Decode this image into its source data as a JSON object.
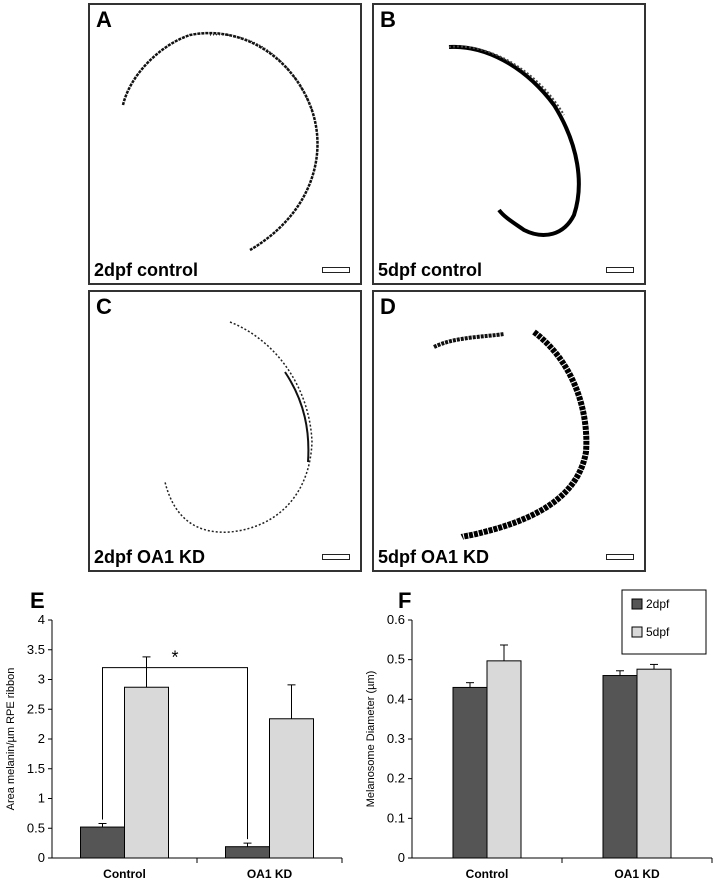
{
  "panels": [
    {
      "letter": "A",
      "caption": "2dpf control"
    },
    {
      "letter": "B",
      "caption": "5dpf control"
    },
    {
      "letter": "C",
      "caption": "2dpf OA1 KD"
    },
    {
      "letter": "D",
      "caption": "5dpf OA1 KD"
    }
  ],
  "chart_data": [
    {
      "panel_letter": "E",
      "type": "bar",
      "categories": [
        "Control",
        "OA1 KD"
      ],
      "series": [
        {
          "name": "2dpf",
          "values": [
            0.52,
            0.19
          ],
          "errors": [
            0.06,
            0.06
          ],
          "color": "#555555"
        },
        {
          "name": "5dpf",
          "values": [
            2.87,
            2.34
          ],
          "errors": [
            0.51,
            0.57
          ],
          "color": "#d9d9d9"
        }
      ],
      "ylabel": "Area melanin/µm RPE ribbon",
      "xlabel": "",
      "ylim": [
        0,
        4
      ],
      "yticks": [
        "0",
        "0.5",
        "1",
        "1.5",
        "2",
        "2.5",
        "3",
        "3.5",
        "4"
      ],
      "annotation": "*",
      "legend": "none"
    },
    {
      "panel_letter": "F",
      "type": "bar",
      "categories": [
        "Control",
        "OA1 KD"
      ],
      "series": [
        {
          "name": "2dpf",
          "values": [
            0.43,
            0.46
          ],
          "errors": [
            0.012,
            0.012
          ],
          "color": "#555555"
        },
        {
          "name": "5dpf",
          "values": [
            0.497,
            0.476
          ],
          "errors": [
            0.04,
            0.012
          ],
          "color": "#d9d9d9"
        }
      ],
      "ylabel": "Melanosome Diameter (µm)",
      "xlabel": "",
      "ylim": [
        0,
        0.6
      ],
      "yticks": [
        "0",
        "0.1",
        "0.2",
        "0.3",
        "0.4",
        "0.5",
        "0.6"
      ],
      "legend": "top-right"
    }
  ]
}
